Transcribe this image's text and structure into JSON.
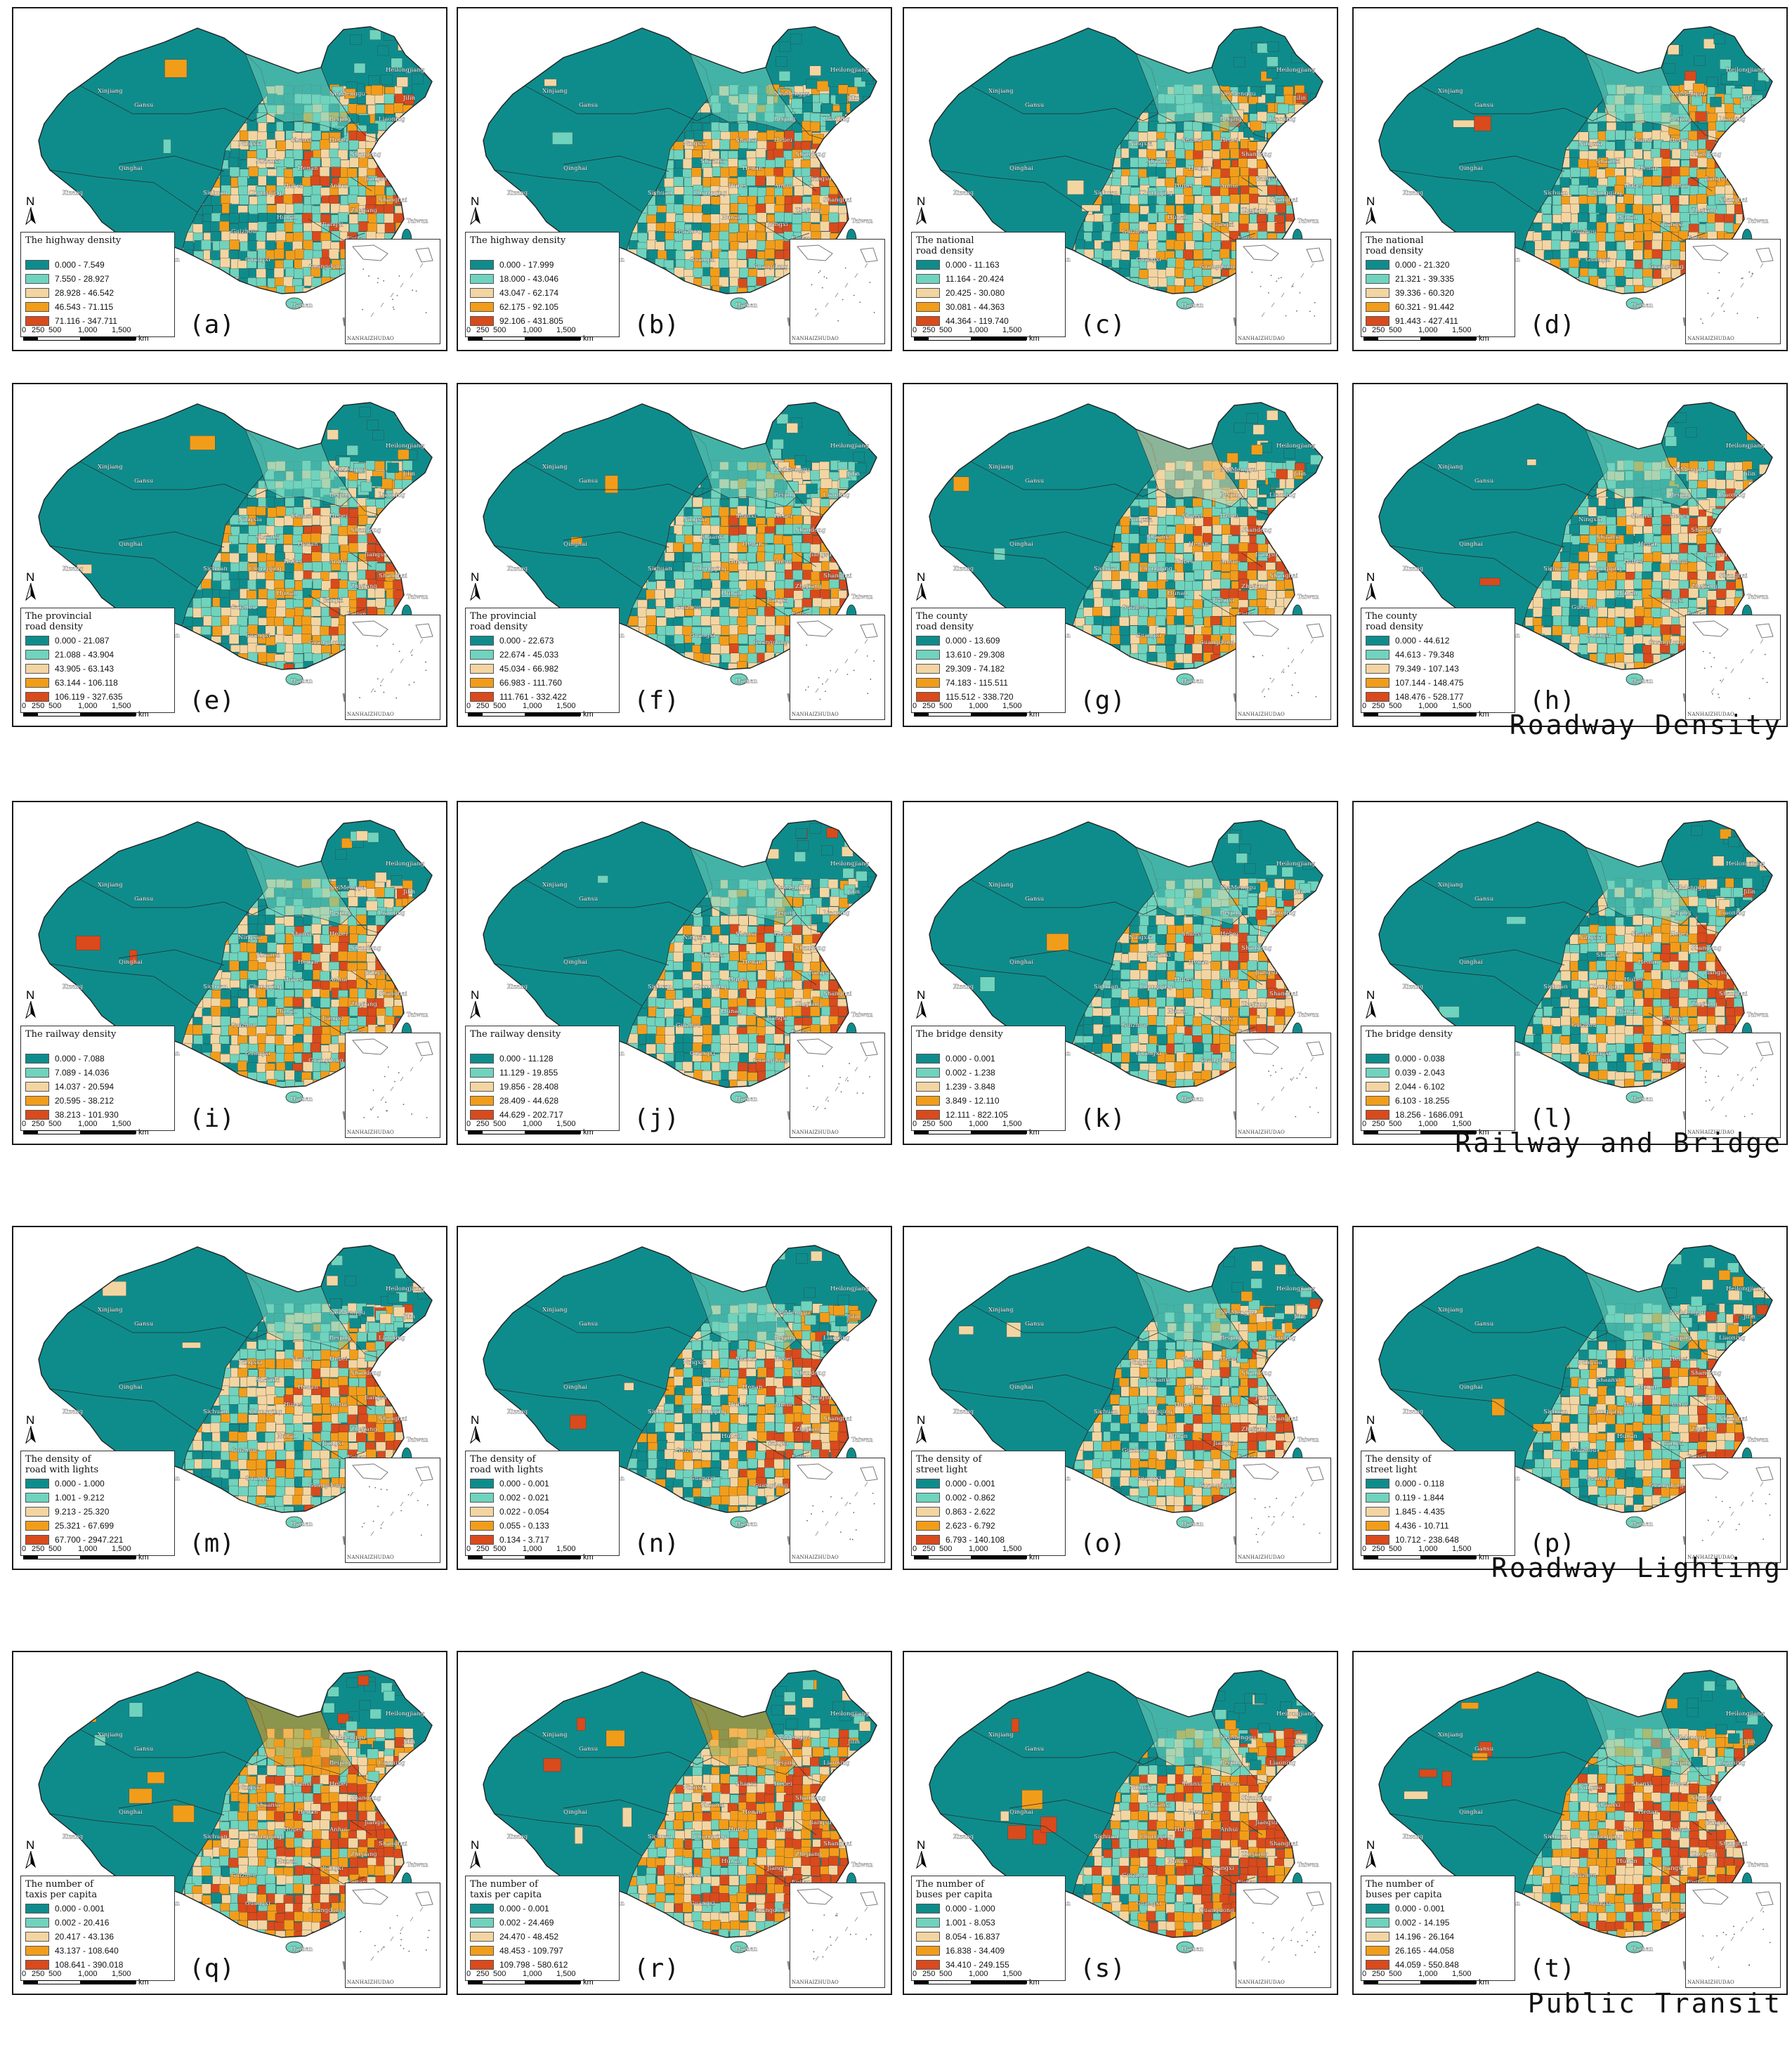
{
  "palette": {
    "teal_dark": "#0e8c8c",
    "teal_light": "#6fd3bd",
    "wheat": "#f3d5a2",
    "orange": "#f29d1a",
    "red": "#d94a1c"
  },
  "common": {
    "north_letter": "N",
    "scale_ticks": [
      "0",
      "250",
      "500",
      "1,000",
      "1,500"
    ],
    "scale_unit": "km",
    "inset_caption": "NANHAIZHUDAO"
  },
  "map_place_labels": [
    "Xinjiang",
    "Gansu",
    "Qinghai",
    "Xizang",
    "NeiMenggu",
    "Heilongjiang",
    "Jilin",
    "Liaoning",
    "Beijing",
    "Hebei",
    "Shanxi",
    "Shaanxi",
    "Ningxia",
    "Henan",
    "Shandong",
    "Jiangsu",
    "Anhui",
    "Shanghai",
    "Hubei",
    "Zhejiang",
    "Sichuan",
    "Chongqing",
    "Hunan",
    "Jiangxi",
    "Fujian",
    "Guizhou",
    "Yunnan",
    "Guangxi",
    "Guangdong",
    "Hainan",
    "Taiwan"
  ],
  "panels": [
    {
      "id": "a",
      "label": "(a)",
      "legend_title": "The highway density",
      "classes": [
        "0.000 - 7.549",
        "7.550 - 28.927",
        "28.928 - 46.542",
        "46.543 - 71.115",
        "71.116 - 347.711"
      ]
    },
    {
      "id": "b",
      "label": "(b)",
      "legend_title": "The highway density",
      "classes": [
        "0.000 - 17.999",
        "18.000 - 43.046",
        "43.047 - 62.174",
        "62.175 - 92.105",
        "92.106 - 431.805"
      ]
    },
    {
      "id": "c",
      "label": "(c)",
      "legend_title": "The national\nroad density",
      "classes": [
        "0.000 - 11.163",
        "11.164 - 20.424",
        "20.425 - 30.080",
        "30.081 - 44.363",
        "44.364 - 119.740"
      ]
    },
    {
      "id": "d",
      "label": "(d)",
      "legend_title": "The national\nroad density",
      "classes": [
        "0.000 - 21.320",
        "21.321 - 39.335",
        "39.336 - 60.320",
        "60.321 - 91.442",
        "91.443 - 427.411"
      ]
    },
    {
      "id": "e",
      "label": "(e)",
      "legend_title": "The provincial\nroad density",
      "classes": [
        "0.000 - 21.087",
        "21.088 - 43.904",
        "43.905 - 63.143",
        "63.144 - 106.118",
        "106.119 - 327.635"
      ]
    },
    {
      "id": "f",
      "label": "(f)",
      "legend_title": "The provincial\nroad density",
      "classes": [
        "0.000 - 22.673",
        "22.674 - 45.033",
        "45.034 - 66.982",
        "66.983 - 111.760",
        "111.761 - 332.422"
      ]
    },
    {
      "id": "g",
      "label": "(g)",
      "legend_title": "The county\nroad density",
      "classes": [
        "0.000 - 13.609",
        "13.610 - 29.308",
        "29.309 - 74.182",
        "74.183 - 115.511",
        "115.512 - 338.720"
      ]
    },
    {
      "id": "h",
      "label": "(h)",
      "legend_title": "The county\nroad density",
      "classes": [
        "0.000 - 44.612",
        "44.613 - 79.348",
        "79.349 - 107.143",
        "107.144 - 148.475",
        "148.476 - 528.177"
      ]
    },
    {
      "id": "i",
      "label": "(i)",
      "legend_title": "The railway density",
      "classes": [
        "0.000 - 7.088",
        "7.089 - 14.036",
        "14.037 - 20.594",
        "20.595 - 38.212",
        "38.213 - 101.930"
      ]
    },
    {
      "id": "j",
      "label": "(j)",
      "legend_title": "The railway density",
      "classes": [
        "0.000 - 11.128",
        "11.129 - 19.855",
        "19.856 - 28.408",
        "28.409 - 44.628",
        "44.629 - 202.717"
      ]
    },
    {
      "id": "k",
      "label": "(k)",
      "legend_title": "The bridge density",
      "classes": [
        "0.000 - 0.001",
        "0.002 - 1.238",
        "1.239 - 3.848",
        "3.849 - 12.110",
        "12.111 - 822.105"
      ]
    },
    {
      "id": "l",
      "label": "(l)",
      "legend_title": "The bridge density",
      "classes": [
        "0.000 - 0.038",
        "0.039 - 2.043",
        "2.044 - 6.102",
        "6.103 - 18.255",
        "18.256 - 1686.091"
      ]
    },
    {
      "id": "m",
      "label": "(m)",
      "legend_title": "The density of\nroad with lights",
      "classes": [
        "0.000 - 1.000",
        "1.001 - 9.212",
        "9.213 - 25.320",
        "25.321 - 67.699",
        "67.700 - 2947.221"
      ]
    },
    {
      "id": "n",
      "label": "(n)",
      "legend_title": "The density of\nroad with lights",
      "classes": [
        "0.000 - 0.001",
        "0.002 - 0.021",
        "0.022 - 0.054",
        "0.055 - 0.133",
        "0.134 - 3.717"
      ]
    },
    {
      "id": "o",
      "label": "(o)",
      "legend_title": "The density of\nstreet light",
      "classes": [
        "0.000 - 0.001",
        "0.002 - 0.862",
        "0.863 - 2.622",
        "2.623 - 6.792",
        "6.793 - 140.108"
      ]
    },
    {
      "id": "p",
      "label": "(p)",
      "legend_title": "The density of\nstreet light",
      "classes": [
        "0.000 - 0.118",
        "0.119 - 1.844",
        "1.845 - 4.435",
        "4.436 - 10.711",
        "10.712 - 238.648"
      ]
    },
    {
      "id": "q",
      "label": "(q)",
      "legend_title": "The number of\ntaxis per capita",
      "classes": [
        "0.000 - 0.001",
        "0.002 - 20.416",
        "20.417 - 43.136",
        "43.137 - 108.640",
        "108.641 - 390.018"
      ]
    },
    {
      "id": "r",
      "label": "(r)",
      "legend_title": "The number of\ntaxis per capita",
      "classes": [
        "0.000 - 0.001",
        "0.002 - 24.469",
        "24.470 - 48.452",
        "48.453 - 109.797",
        "109.798 - 580.612"
      ]
    },
    {
      "id": "s",
      "label": "(s)",
      "legend_title": "The number of\nbuses per capita",
      "classes": [
        "0.000 - 1.000",
        "1.001 - 8.053",
        "8.054 - 16.837",
        "16.838 - 34.409",
        "34.410 - 249.155"
      ]
    },
    {
      "id": "t",
      "label": "(t)",
      "legend_title": "The number of\nbuses per capita",
      "classes": [
        "0.000 - 0.001",
        "0.002 - 14.195",
        "14.196 - 26.164",
        "26.165 - 44.058",
        "44.059 - 550.848"
      ]
    }
  ],
  "section_titles": [
    "Roadway Density",
    "Railway and Bridge",
    "Roadway Lighting",
    "Public Transit"
  ]
}
